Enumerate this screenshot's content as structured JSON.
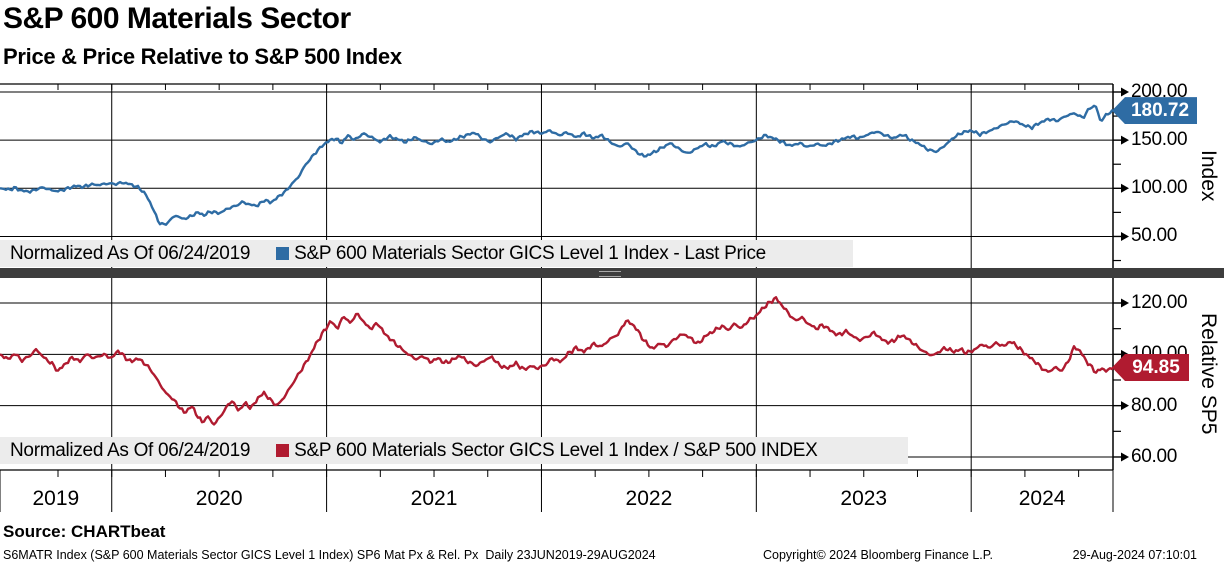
{
  "header": {
    "title": "S&P 600 Materials Sector",
    "subtitle": "Price & Price Relative to S&P 500 Index"
  },
  "colors": {
    "price_line": "#2e6ca4",
    "relative_line": "#b01b30",
    "price_tag_bg": "#2e6ca4",
    "relative_tag_bg": "#b01b30",
    "legend_bg": "#ececec",
    "separator": "#3d3d3d",
    "grid": "#000000"
  },
  "top_panel": {
    "axis_title": "Index",
    "y_ticks": [
      "200.00",
      "150.00",
      "100.00",
      "50.00"
    ],
    "y_tick_values": [
      200,
      150,
      100,
      50
    ],
    "y_minor_ticks": [
      175,
      125,
      75,
      25
    ],
    "last_value_label": "180.72",
    "legend": {
      "normalized": "Normalized As Of 06/24/2019",
      "series": "S&P 600 Materials Sector GICS Level 1 Index - Last Price"
    }
  },
  "bottom_panel": {
    "axis_title": "Relative SP5",
    "y_ticks": [
      "120.00",
      "100.00",
      "80.00",
      "60.00"
    ],
    "y_tick_values": [
      120,
      100,
      80,
      60
    ],
    "y_minor_ticks": [
      130,
      110,
      90,
      70
    ],
    "last_value_label": "94.85",
    "legend": {
      "normalized": "Normalized As Of 06/24/2019",
      "series": "S&P 600 Materials Sector GICS Level 1 Index / S&P 500 INDEX"
    }
  },
  "x_axis": {
    "year_labels": [
      "2019",
      "2020",
      "2021",
      "2022",
      "2023",
      "2024"
    ],
    "range_start": 2019.48,
    "range_end": 2024.66
  },
  "footer": {
    "source": "Source: CHARTbeat",
    "description": "S6MATR Index (S&P 600 Materials Sector GICS Level 1 Index) SP6 Mat Px & Rel. Px  Daily 23JUN2019-29AUG2024",
    "copyright": "Copyright© 2024 Bloomberg Finance L.P.",
    "timestamp": "29-Aug-2024 07:10:01"
  },
  "chart_data": [
    {
      "type": "line",
      "title": "S&P 600 Materials Sector GICS Level 1 Index - Last Price",
      "normalized_as_of": "06/24/2019",
      "x_unit": "decimal_year",
      "x_range": [
        2019.48,
        2024.66
      ],
      "ylim": [
        50,
        200
      ],
      "y_axis_label": "Index",
      "legend_position": "bottom-left",
      "grid": true,
      "color": "#2e6ca4",
      "last_value": 180.72,
      "points": [
        [
          2019.48,
          100
        ],
        [
          2019.52,
          98.5
        ],
        [
          2019.55,
          100.5
        ],
        [
          2019.58,
          97.5
        ],
        [
          2019.62,
          96.5
        ],
        [
          2019.65,
          99
        ],
        [
          2019.68,
          101
        ],
        [
          2019.72,
          98
        ],
        [
          2019.75,
          97
        ],
        [
          2019.79,
          99.5
        ],
        [
          2019.83,
          102.5
        ],
        [
          2019.87,
          101.5
        ],
        [
          2019.9,
          104
        ],
        [
          2019.94,
          103.5
        ],
        [
          2019.98,
          105
        ],
        [
          2020.02,
          104.5
        ],
        [
          2020.05,
          106
        ],
        [
          2020.09,
          104
        ],
        [
          2020.13,
          100
        ],
        [
          2020.16,
          93
        ],
        [
          2020.19,
          80
        ],
        [
          2020.22,
          64
        ],
        [
          2020.25,
          62
        ],
        [
          2020.27,
          67
        ],
        [
          2020.3,
          72
        ],
        [
          2020.33,
          68
        ],
        [
          2020.36,
          70
        ],
        [
          2020.4,
          75
        ],
        [
          2020.43,
          72
        ],
        [
          2020.46,
          76
        ],
        [
          2020.5,
          74
        ],
        [
          2020.54,
          79
        ],
        [
          2020.58,
          82
        ],
        [
          2020.61,
          86
        ],
        [
          2020.64,
          83
        ],
        [
          2020.68,
          82
        ],
        [
          2020.71,
          88
        ],
        [
          2020.74,
          85
        ],
        [
          2020.78,
          92
        ],
        [
          2020.81,
          97
        ],
        [
          2020.84,
          105
        ],
        [
          2020.87,
          112
        ],
        [
          2020.9,
          124
        ],
        [
          2020.93,
          132
        ],
        [
          2020.96,
          140
        ],
        [
          2021,
          148
        ],
        [
          2021.04,
          152
        ],
        [
          2021.07,
          147
        ],
        [
          2021.1,
          155
        ],
        [
          2021.13,
          150
        ],
        [
          2021.17,
          157
        ],
        [
          2021.21,
          153
        ],
        [
          2021.25,
          148
        ],
        [
          2021.29,
          154
        ],
        [
          2021.33,
          151
        ],
        [
          2021.37,
          148
        ],
        [
          2021.41,
          153
        ],
        [
          2021.45,
          149
        ],
        [
          2021.49,
          146
        ],
        [
          2021.53,
          151
        ],
        [
          2021.57,
          148
        ],
        [
          2021.61,
          152
        ],
        [
          2021.65,
          155
        ],
        [
          2021.69,
          158
        ],
        [
          2021.72,
          152
        ],
        [
          2021.76,
          148
        ],
        [
          2021.8,
          153
        ],
        [
          2021.84,
          157
        ],
        [
          2021.88,
          151
        ],
        [
          2021.92,
          156
        ],
        [
          2021.96,
          159
        ],
        [
          2022,
          157
        ],
        [
          2022.04,
          160
        ],
        [
          2022.08,
          155
        ],
        [
          2022.12,
          158
        ],
        [
          2022.16,
          153
        ],
        [
          2022.2,
          157
        ],
        [
          2022.24,
          152
        ],
        [
          2022.28,
          155
        ],
        [
          2022.32,
          148
        ],
        [
          2022.36,
          143
        ],
        [
          2022.4,
          147
        ],
        [
          2022.44,
          138
        ],
        [
          2022.48,
          133
        ],
        [
          2022.52,
          137
        ],
        [
          2022.56,
          142
        ],
        [
          2022.6,
          147
        ],
        [
          2022.64,
          141
        ],
        [
          2022.68,
          136
        ],
        [
          2022.72,
          141
        ],
        [
          2022.76,
          146
        ],
        [
          2022.8,
          143
        ],
        [
          2022.84,
          149
        ],
        [
          2022.88,
          146
        ],
        [
          2022.92,
          143
        ],
        [
          2022.96,
          147
        ],
        [
          2023,
          150
        ],
        [
          2023.04,
          155
        ],
        [
          2023.08,
          152
        ],
        [
          2023.12,
          148
        ],
        [
          2023.16,
          144
        ],
        [
          2023.2,
          147
        ],
        [
          2023.24,
          143
        ],
        [
          2023.28,
          146
        ],
        [
          2023.32,
          144
        ],
        [
          2023.36,
          148
        ],
        [
          2023.4,
          151
        ],
        [
          2023.44,
          154
        ],
        [
          2023.48,
          152
        ],
        [
          2023.52,
          156
        ],
        [
          2023.56,
          159
        ],
        [
          2023.6,
          155
        ],
        [
          2023.64,
          152
        ],
        [
          2023.68,
          156
        ],
        [
          2023.72,
          150
        ],
        [
          2023.76,
          146
        ],
        [
          2023.8,
          140
        ],
        [
          2023.84,
          138
        ],
        [
          2023.88,
          145
        ],
        [
          2023.92,
          153
        ],
        [
          2023.96,
          158
        ],
        [
          2024,
          160
        ],
        [
          2024.04,
          156
        ],
        [
          2024.08,
          159
        ],
        [
          2024.12,
          163
        ],
        [
          2024.16,
          167
        ],
        [
          2024.2,
          170
        ],
        [
          2024.24,
          166
        ],
        [
          2024.28,
          163
        ],
        [
          2024.32,
          168
        ],
        [
          2024.36,
          172
        ],
        [
          2024.4,
          170
        ],
        [
          2024.44,
          175
        ],
        [
          2024.48,
          178
        ],
        [
          2024.52,
          173
        ],
        [
          2024.55,
          183
        ],
        [
          2024.58,
          186
        ],
        [
          2024.6,
          170
        ],
        [
          2024.62,
          174
        ],
        [
          2024.64,
          178
        ],
        [
          2024.66,
          180.72
        ]
      ]
    },
    {
      "type": "line",
      "title": "S&P 600 Materials Sector GICS Level 1 Index / S&P 500 INDEX",
      "normalized_as_of": "06/24/2019",
      "x_unit": "decimal_year",
      "x_range": [
        2019.48,
        2024.66
      ],
      "ylim": [
        60,
        120
      ],
      "y_axis_label": "Relative SP5",
      "legend_position": "bottom-left",
      "grid": true,
      "color": "#b01b30",
      "last_value": 94.85,
      "points": [
        [
          2019.48,
          100
        ],
        [
          2019.52,
          98
        ],
        [
          2019.55,
          100.5
        ],
        [
          2019.58,
          97.5
        ],
        [
          2019.62,
          99.5
        ],
        [
          2019.65,
          102
        ],
        [
          2019.68,
          99
        ],
        [
          2019.72,
          96.5
        ],
        [
          2019.75,
          93.5
        ],
        [
          2019.78,
          96
        ],
        [
          2019.82,
          99
        ],
        [
          2019.85,
          97
        ],
        [
          2019.88,
          100
        ],
        [
          2019.92,
          98.5
        ],
        [
          2019.96,
          100
        ],
        [
          2020,
          98.5
        ],
        [
          2020.03,
          101.5
        ],
        [
          2020.06,
          99
        ],
        [
          2020.09,
          97
        ],
        [
          2020.12,
          98.5
        ],
        [
          2020.16,
          96
        ],
        [
          2020.19,
          93
        ],
        [
          2020.22,
          89
        ],
        [
          2020.25,
          85
        ],
        [
          2020.28,
          83
        ],
        [
          2020.31,
          80
        ],
        [
          2020.34,
          77
        ],
        [
          2020.37,
          80
        ],
        [
          2020.4,
          76
        ],
        [
          2020.42,
          73.5
        ],
        [
          2020.45,
          76
        ],
        [
          2020.47,
          72.5
        ],
        [
          2020.5,
          75
        ],
        [
          2020.53,
          79
        ],
        [
          2020.56,
          82
        ],
        [
          2020.59,
          78
        ],
        [
          2020.62,
          81
        ],
        [
          2020.65,
          79
        ],
        [
          2020.68,
          83
        ],
        [
          2020.71,
          85
        ],
        [
          2020.74,
          82
        ],
        [
          2020.77,
          80
        ],
        [
          2020.8,
          83
        ],
        [
          2020.83,
          87
        ],
        [
          2020.86,
          91
        ],
        [
          2020.89,
          95
        ],
        [
          2020.92,
          99
        ],
        [
          2020.95,
          104
        ],
        [
          2020.98,
          108
        ],
        [
          2021.02,
          113
        ],
        [
          2021.05,
          110
        ],
        [
          2021.08,
          115
        ],
        [
          2021.11,
          112
        ],
        [
          2021.14,
          116
        ],
        [
          2021.17,
          113
        ],
        [
          2021.2,
          110
        ],
        [
          2021.24,
          112
        ],
        [
          2021.27,
          108
        ],
        [
          2021.31,
          105
        ],
        [
          2021.35,
          102
        ],
        [
          2021.38,
          100
        ],
        [
          2021.42,
          98
        ],
        [
          2021.45,
          99.5
        ],
        [
          2021.48,
          97
        ],
        [
          2021.52,
          98.5
        ],
        [
          2021.55,
          96.5
        ],
        [
          2021.59,
          98
        ],
        [
          2021.62,
          99.5
        ],
        [
          2021.66,
          97
        ],
        [
          2021.7,
          95.5
        ],
        [
          2021.73,
          97.5
        ],
        [
          2021.77,
          99
        ],
        [
          2021.8,
          96
        ],
        [
          2021.84,
          94.5
        ],
        [
          2021.88,
          96.5
        ],
        [
          2021.92,
          94
        ],
        [
          2021.95,
          95.5
        ],
        [
          2021.98,
          94.5
        ],
        [
          2022.02,
          96
        ],
        [
          2022.05,
          98.5
        ],
        [
          2022.09,
          97
        ],
        [
          2022.12,
          100
        ],
        [
          2022.16,
          102.5
        ],
        [
          2022.2,
          101
        ],
        [
          2022.24,
          104
        ],
        [
          2022.28,
          103
        ],
        [
          2022.32,
          106
        ],
        [
          2022.36,
          108
        ],
        [
          2022.39,
          113
        ],
        [
          2022.42,
          112
        ],
        [
          2022.45,
          109
        ],
        [
          2022.48,
          105
        ],
        [
          2022.52,
          102
        ],
        [
          2022.55,
          104.5
        ],
        [
          2022.58,
          103
        ],
        [
          2022.62,
          106
        ],
        [
          2022.66,
          108
        ],
        [
          2022.69,
          106.5
        ],
        [
          2022.73,
          104
        ],
        [
          2022.76,
          107
        ],
        [
          2022.8,
          109
        ],
        [
          2022.84,
          111
        ],
        [
          2022.87,
          109.5
        ],
        [
          2022.9,
          112
        ],
        [
          2022.93,
          110
        ],
        [
          2022.96,
          113
        ],
        [
          2023,
          115
        ],
        [
          2023.03,
          118
        ],
        [
          2023.06,
          120
        ],
        [
          2023.09,
          122
        ],
        [
          2023.12,
          119
        ],
        [
          2023.15,
          116
        ],
        [
          2023.18,
          113
        ],
        [
          2023.21,
          114.5
        ],
        [
          2023.24,
          112
        ],
        [
          2023.28,
          110
        ],
        [
          2023.31,
          111.5
        ],
        [
          2023.35,
          109
        ],
        [
          2023.38,
          107.5
        ],
        [
          2023.42,
          109
        ],
        [
          2023.45,
          107
        ],
        [
          2023.48,
          105.5
        ],
        [
          2023.52,
          107
        ],
        [
          2023.55,
          108.5
        ],
        [
          2023.58,
          106
        ],
        [
          2023.62,
          104.5
        ],
        [
          2023.65,
          106
        ],
        [
          2023.68,
          107.5
        ],
        [
          2023.72,
          105
        ],
        [
          2023.75,
          103
        ],
        [
          2023.78,
          101
        ],
        [
          2023.82,
          99.5
        ],
        [
          2023.85,
          101
        ],
        [
          2023.88,
          102.5
        ],
        [
          2023.92,
          101
        ],
        [
          2023.95,
          102
        ],
        [
          2023.98,
          100.5
        ],
        [
          2024.02,
          102
        ],
        [
          2024.05,
          104
        ],
        [
          2024.08,
          102.5
        ],
        [
          2024.12,
          104.5
        ],
        [
          2024.15,
          103
        ],
        [
          2024.18,
          105
        ],
        [
          2024.21,
          103.5
        ],
        [
          2024.24,
          101
        ],
        [
          2024.27,
          99
        ],
        [
          2024.3,
          97
        ],
        [
          2024.33,
          94.5
        ],
        [
          2024.36,
          93
        ],
        [
          2024.39,
          95
        ],
        [
          2024.42,
          93.5
        ],
        [
          2024.45,
          97
        ],
        [
          2024.48,
          103
        ],
        [
          2024.51,
          101
        ],
        [
          2024.53,
          98
        ],
        [
          2024.56,
          95
        ],
        [
          2024.58,
          93
        ],
        [
          2024.61,
          94.5
        ],
        [
          2024.63,
          93.5
        ],
        [
          2024.66,
          94.85
        ]
      ]
    }
  ]
}
